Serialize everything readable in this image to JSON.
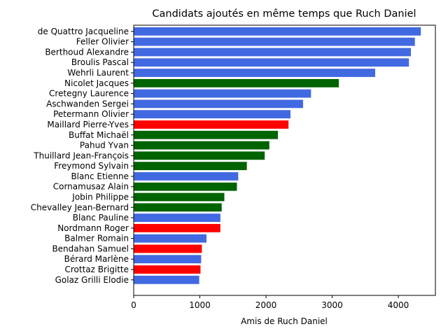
{
  "chart_data": {
    "type": "bar",
    "orientation": "horizontal",
    "title": "Candidats ajoutés en même temps que Ruch Daniel",
    "xlabel": "Amis de Ruch Daniel",
    "ylabel": "",
    "xlim": [
      0,
      4560
    ],
    "xticks": [
      0,
      1000,
      2000,
      3000,
      4000
    ],
    "grid": false,
    "legend": "none",
    "colors": {
      "blue": "#4169e1",
      "green": "#006400",
      "red": "#ff0000"
    },
    "bars": [
      {
        "label": "de Quattro Jacqueline",
        "value": 4340,
        "color": "blue"
      },
      {
        "label": "Feller Olivier",
        "value": 4250,
        "color": "blue"
      },
      {
        "label": "Berthoud Alexandre",
        "value": 4190,
        "color": "blue"
      },
      {
        "label": "Broulis Pascal",
        "value": 4160,
        "color": "blue"
      },
      {
        "label": "Wehrli Laurent",
        "value": 3650,
        "color": "blue"
      },
      {
        "label": "Nicolet Jacques",
        "value": 3100,
        "color": "green"
      },
      {
        "label": "Cretegny Laurence",
        "value": 2680,
        "color": "blue"
      },
      {
        "label": "Aschwanden Sergei",
        "value": 2560,
        "color": "blue"
      },
      {
        "label": "Petermann Olivier",
        "value": 2370,
        "color": "blue"
      },
      {
        "label": "Maillard Pierre-Yves",
        "value": 2340,
        "color": "red"
      },
      {
        "label": "Buffat Michaël",
        "value": 2180,
        "color": "green"
      },
      {
        "label": "Pahud Yvan",
        "value": 2050,
        "color": "green"
      },
      {
        "label": "Thuillard Jean-François",
        "value": 1980,
        "color": "green"
      },
      {
        "label": "Freymond Sylvain",
        "value": 1710,
        "color": "green"
      },
      {
        "label": "Blanc Etienne",
        "value": 1580,
        "color": "blue"
      },
      {
        "label": "Cornamusaz Alain",
        "value": 1560,
        "color": "green"
      },
      {
        "label": "Jobin Philippe",
        "value": 1370,
        "color": "green"
      },
      {
        "label": "Chevalley Jean-Bernard",
        "value": 1330,
        "color": "green"
      },
      {
        "label": "Blanc Pauline",
        "value": 1310,
        "color": "blue"
      },
      {
        "label": "Nordmann Roger",
        "value": 1310,
        "color": "red"
      },
      {
        "label": "Balmer Romain",
        "value": 1100,
        "color": "blue"
      },
      {
        "label": "Bendahan Samuel",
        "value": 1030,
        "color": "red"
      },
      {
        "label": "Bérard Marlène",
        "value": 1020,
        "color": "blue"
      },
      {
        "label": "Crottaz Brigitte",
        "value": 1010,
        "color": "red"
      },
      {
        "label": "Golaz Grilli Elodie",
        "value": 990,
        "color": "blue"
      }
    ]
  }
}
